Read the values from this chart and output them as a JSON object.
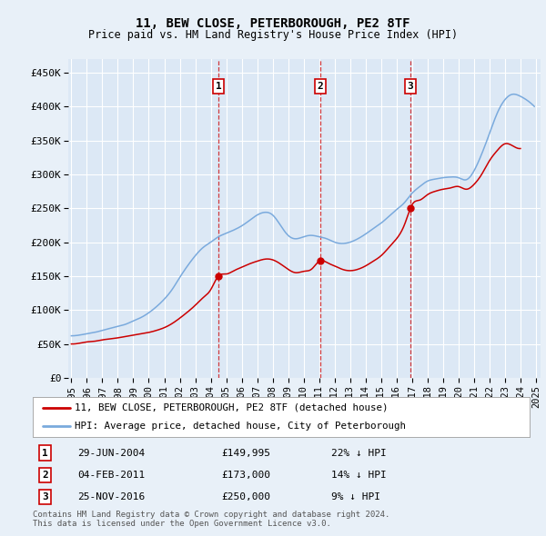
{
  "title": "11, BEW CLOSE, PETERBOROUGH, PE2 8TF",
  "subtitle": "Price paid vs. HM Land Registry's House Price Index (HPI)",
  "bg_color": "#e8f0f8",
  "plot_bg_color": "#dce8f5",
  "grid_color": "#ffffff",
  "ylim": [
    0,
    470000
  ],
  "yticks": [
    0,
    50000,
    100000,
    150000,
    200000,
    250000,
    300000,
    350000,
    400000,
    450000
  ],
  "ytick_labels": [
    "£0",
    "£50K",
    "£100K",
    "£150K",
    "£200K",
    "£250K",
    "£300K",
    "£350K",
    "£400K",
    "£450K"
  ],
  "xtick_years": [
    1995,
    1996,
    1997,
    1998,
    1999,
    2000,
    2001,
    2002,
    2003,
    2004,
    2005,
    2006,
    2007,
    2008,
    2009,
    2010,
    2011,
    2012,
    2013,
    2014,
    2015,
    2016,
    2017,
    2018,
    2019,
    2020,
    2021,
    2022,
    2023,
    2024,
    2025
  ],
  "red_line_color": "#cc0000",
  "blue_line_color": "#7aaadd",
  "sale1_x": 2004.49,
  "sale1_y": 149995,
  "sale1_label": "1",
  "sale1_date": "29-JUN-2004",
  "sale1_price": "£149,995",
  "sale1_hpi": "22% ↓ HPI",
  "sale2_x": 2011.09,
  "sale2_y": 173000,
  "sale2_label": "2",
  "sale2_date": "04-FEB-2011",
  "sale2_price": "£173,000",
  "sale2_hpi": "14% ↓ HPI",
  "sale3_x": 2016.9,
  "sale3_y": 250000,
  "sale3_label": "3",
  "sale3_date": "25-NOV-2016",
  "sale3_price": "£250,000",
  "sale3_hpi": "9% ↓ HPI",
  "legend_label_red": "11, BEW CLOSE, PETERBOROUGH, PE2 8TF (detached house)",
  "legend_label_blue": "HPI: Average price, detached house, City of Peterborough",
  "footer": "Contains HM Land Registry data © Crown copyright and database right 2024.\nThis data is licensed under the Open Government Licence v3.0.",
  "hpi_anchors": [
    [
      1995.0,
      62000
    ],
    [
      1995.5,
      63000
    ],
    [
      1996.0,
      65000
    ],
    [
      1996.5,
      67000
    ],
    [
      1997.0,
      70000
    ],
    [
      1997.5,
      73000
    ],
    [
      1998.0,
      76000
    ],
    [
      1998.5,
      79000
    ],
    [
      1999.0,
      84000
    ],
    [
      1999.5,
      89000
    ],
    [
      2000.0,
      96000
    ],
    [
      2000.5,
      105000
    ],
    [
      2001.0,
      116000
    ],
    [
      2001.5,
      130000
    ],
    [
      2002.0,
      148000
    ],
    [
      2002.5,
      165000
    ],
    [
      2003.0,
      180000
    ],
    [
      2003.5,
      192000
    ],
    [
      2004.0,
      200000
    ],
    [
      2004.5,
      208000
    ],
    [
      2005.0,
      213000
    ],
    [
      2005.5,
      218000
    ],
    [
      2006.0,
      224000
    ],
    [
      2006.5,
      232000
    ],
    [
      2007.0,
      240000
    ],
    [
      2007.5,
      244000
    ],
    [
      2008.0,
      240000
    ],
    [
      2008.5,
      225000
    ],
    [
      2009.0,
      210000
    ],
    [
      2009.5,
      205000
    ],
    [
      2010.0,
      208000
    ],
    [
      2010.5,
      210000
    ],
    [
      2011.0,
      208000
    ],
    [
      2011.5,
      205000
    ],
    [
      2012.0,
      200000
    ],
    [
      2012.5,
      198000
    ],
    [
      2013.0,
      200000
    ],
    [
      2013.5,
      205000
    ],
    [
      2014.0,
      212000
    ],
    [
      2014.5,
      220000
    ],
    [
      2015.0,
      228000
    ],
    [
      2015.5,
      238000
    ],
    [
      2016.0,
      248000
    ],
    [
      2016.5,
      258000
    ],
    [
      2017.0,
      272000
    ],
    [
      2017.5,
      282000
    ],
    [
      2018.0,
      290000
    ],
    [
      2018.5,
      293000
    ],
    [
      2019.0,
      295000
    ],
    [
      2019.5,
      296000
    ],
    [
      2020.0,
      295000
    ],
    [
      2020.5,
      292000
    ],
    [
      2021.0,
      305000
    ],
    [
      2021.5,
      330000
    ],
    [
      2022.0,
      360000
    ],
    [
      2022.5,
      390000
    ],
    [
      2023.0,
      410000
    ],
    [
      2023.5,
      418000
    ],
    [
      2024.0,
      415000
    ],
    [
      2024.5,
      408000
    ],
    [
      2024.9,
      400000
    ]
  ],
  "red_anchors": [
    [
      1995.0,
      50000
    ],
    [
      1995.5,
      51000
    ],
    [
      1996.0,
      53000
    ],
    [
      1996.5,
      54000
    ],
    [
      1997.0,
      56000
    ],
    [
      1997.5,
      57500
    ],
    [
      1998.0,
      59000
    ],
    [
      1998.5,
      61000
    ],
    [
      1999.0,
      63000
    ],
    [
      1999.5,
      65000
    ],
    [
      2000.0,
      67000
    ],
    [
      2000.5,
      70000
    ],
    [
      2001.0,
      74000
    ],
    [
      2001.5,
      80000
    ],
    [
      2002.0,
      88000
    ],
    [
      2002.5,
      97000
    ],
    [
      2003.0,
      107000
    ],
    [
      2003.5,
      118000
    ],
    [
      2004.0,
      130000
    ],
    [
      2004.49,
      149995
    ],
    [
      2005.0,
      153000
    ],
    [
      2005.5,
      158000
    ],
    [
      2006.0,
      163000
    ],
    [
      2006.5,
      168000
    ],
    [
      2007.0,
      172000
    ],
    [
      2007.5,
      175000
    ],
    [
      2008.0,
      174000
    ],
    [
      2008.5,
      168000
    ],
    [
      2009.0,
      160000
    ],
    [
      2009.5,
      155000
    ],
    [
      2010.0,
      157000
    ],
    [
      2010.5,
      160000
    ],
    [
      2011.09,
      173000
    ],
    [
      2011.5,
      170000
    ],
    [
      2012.0,
      165000
    ],
    [
      2012.5,
      160000
    ],
    [
      2013.0,
      158000
    ],
    [
      2013.5,
      160000
    ],
    [
      2014.0,
      165000
    ],
    [
      2014.5,
      172000
    ],
    [
      2015.0,
      180000
    ],
    [
      2015.5,
      192000
    ],
    [
      2016.0,
      205000
    ],
    [
      2016.5,
      225000
    ],
    [
      2016.9,
      250000
    ],
    [
      2017.0,
      255000
    ],
    [
      2017.5,
      262000
    ],
    [
      2018.0,
      270000
    ],
    [
      2018.5,
      275000
    ],
    [
      2019.0,
      278000
    ],
    [
      2019.5,
      280000
    ],
    [
      2020.0,
      282000
    ],
    [
      2020.5,
      278000
    ],
    [
      2021.0,
      285000
    ],
    [
      2021.5,
      300000
    ],
    [
      2022.0,
      320000
    ],
    [
      2022.5,
      335000
    ],
    [
      2023.0,
      345000
    ],
    [
      2023.5,
      342000
    ],
    [
      2024.0,
      338000
    ]
  ]
}
